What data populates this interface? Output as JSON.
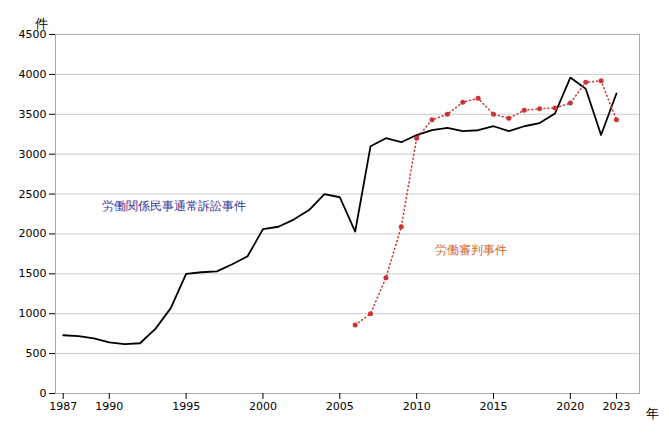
{
  "chart_data": {
    "type": "line",
    "xlabel": "年",
    "ylabel": "件",
    "xlim": [
      1986.5,
      2024.5
    ],
    "xticks": [
      1987,
      1990,
      1995,
      2000,
      2005,
      2010,
      2015,
      2020,
      2023
    ],
    "ylim": [
      0,
      4500
    ],
    "yticks": [
      0,
      500,
      1000,
      1500,
      2000,
      2500,
      3000,
      3500,
      4000,
      4500
    ],
    "grid": "y",
    "x": [
      1987,
      1988,
      1989,
      1990,
      1991,
      1992,
      1993,
      1994,
      1995,
      1996,
      1997,
      1998,
      1999,
      2000,
      2001,
      2002,
      2003,
      2004,
      2005,
      2006,
      2007,
      2008,
      2009,
      2010,
      2011,
      2012,
      2013,
      2014,
      2015,
      2016,
      2017,
      2018,
      2019,
      2020,
      2021,
      2022,
      2023
    ],
    "series": [
      {
        "color": "#000000",
        "line_style": "solid",
        "values": [
          730,
          720,
          690,
          640,
          620,
          630,
          810,
          1070,
          1500,
          1520,
          1530,
          1620,
          1720,
          2060,
          2090,
          2180,
          2300,
          2500,
          2460,
          2030,
          3100,
          3200,
          3150,
          3240,
          3300,
          3330,
          3290,
          3300,
          3350,
          3290,
          3350,
          3390,
          3510,
          3960,
          3820,
          3240,
          3760
        ]
      },
      {
        "color": "#cc3333",
        "line_style": "dotted",
        "marker": "circle",
        "values": [
          null,
          null,
          null,
          null,
          null,
          null,
          null,
          null,
          null,
          null,
          null,
          null,
          null,
          null,
          null,
          null,
          null,
          null,
          null,
          860,
          1000,
          1450,
          2090,
          3200,
          3430,
          3500,
          3650,
          3700,
          3500,
          3450,
          3550,
          3570,
          3580,
          3640,
          3900,
          3920,
          3430
        ]
      }
    ],
    "annotations": [
      {
        "text": "労働関係民事通常訴訟事件",
        "x": 1989.5,
        "y": 2300,
        "color": "#333399"
      },
      {
        "text": "労働審判事件",
        "x": 2011.2,
        "y": 1750,
        "color": "#cc6633"
      }
    ]
  }
}
